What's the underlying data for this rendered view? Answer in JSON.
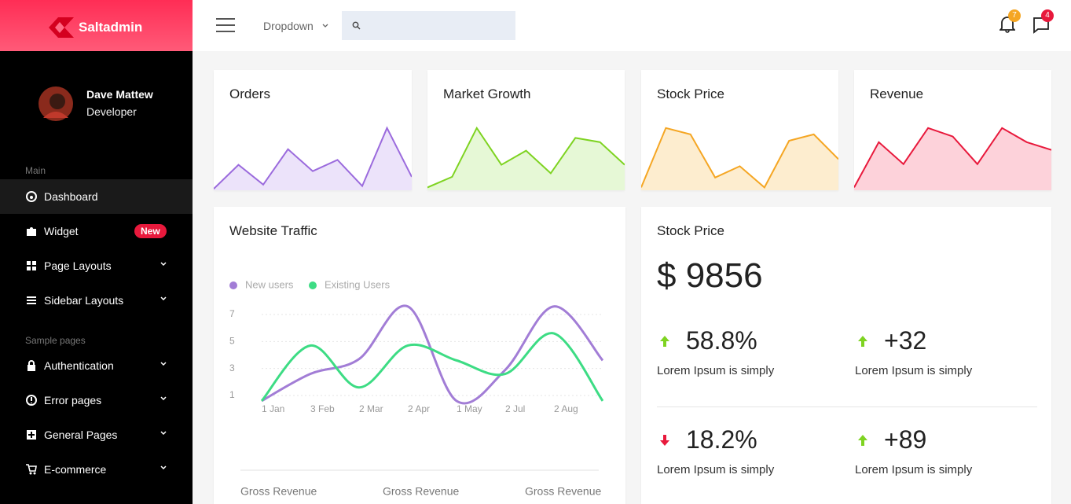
{
  "brand": "Saltadmin",
  "header": {
    "dropdown": "Dropdown",
    "notifications": 7,
    "messages": 4
  },
  "user": {
    "name": "Dave Mattew",
    "role": "Developer"
  },
  "sidebar": {
    "main": {
      "title": "Main",
      "items": [
        {
          "label": "Dashboard"
        },
        {
          "label": "Widget",
          "badge": "New"
        },
        {
          "label": "Page Layouts"
        },
        {
          "label": "Sidebar Layouts"
        }
      ]
    },
    "sample": {
      "title": "Sample pages",
      "items": [
        {
          "label": "Authentication"
        },
        {
          "label": "Error pages"
        },
        {
          "label": "General Pages"
        },
        {
          "label": "E-commerce"
        }
      ]
    }
  },
  "chart_data": [
    {
      "type": "area",
      "title": "Orders",
      "values": [
        2,
        36,
        8,
        58,
        27,
        43,
        6,
        88,
        19
      ],
      "ylim": [
        0,
        100
      ],
      "color": "#9b6bdd",
      "fill": "#ece3fa"
    },
    {
      "type": "area",
      "title": "Market Growth",
      "values": [
        4,
        19,
        88,
        36,
        56,
        24,
        74,
        68,
        36
      ],
      "ylim": [
        0,
        100
      ],
      "color": "#7ed321",
      "fill": "#e6f8d6"
    },
    {
      "type": "area",
      "title": "Stock Price",
      "values": [
        4,
        88,
        79,
        18,
        34,
        4,
        70,
        79,
        44
      ],
      "ylim": [
        0,
        100
      ],
      "color": "#f5a623",
      "fill": "#fdedcf"
    },
    {
      "type": "area",
      "title": "Revenue",
      "values": [
        4,
        68,
        37,
        88,
        76,
        37,
        88,
        68,
        57
      ],
      "ylim": [
        0,
        100
      ],
      "color": "#e8193c",
      "fill": "#fdd2da"
    },
    {
      "type": "line",
      "title": "Website Traffic",
      "categories": [
        "1 Jan",
        "3 Feb",
        "2 Mar",
        "2 Apr",
        "1 May",
        "2 Jul",
        "2 Aug",
        null
      ],
      "series": [
        {
          "name": "New users",
          "color": "#a27dd6",
          "values": [
            0.6,
            2.6,
            3.7,
            7.6,
            0.6,
            2.9,
            7.6,
            3.6
          ]
        },
        {
          "name": "Existing Users",
          "color": "#3ddc84",
          "values": [
            0.6,
            4.7,
            1.6,
            4.7,
            3.6,
            2.6,
            5.6,
            0.6
          ]
        }
      ],
      "ylim": [
        0.5,
        7.6
      ],
      "yticks": [
        1,
        3,
        5,
        7
      ],
      "grid": true,
      "legend": "top-left",
      "footer": [
        "Gross Revenue",
        "Gross Revenue",
        "Gross Revenue"
      ]
    }
  ],
  "stock": {
    "title": "Stock Price",
    "price": "$ 9856",
    "stats": [
      {
        "value": "58.8%",
        "direction": "up",
        "text": "Lorem Ipsum is simply"
      },
      {
        "value": "+32",
        "direction": "up",
        "text": "Lorem Ipsum is simply"
      },
      {
        "value": "18.2%",
        "direction": "down",
        "text": "Lorem Ipsum is simply"
      },
      {
        "value": "+89",
        "direction": "up",
        "text": "Lorem Ipsum is simply"
      }
    ]
  }
}
